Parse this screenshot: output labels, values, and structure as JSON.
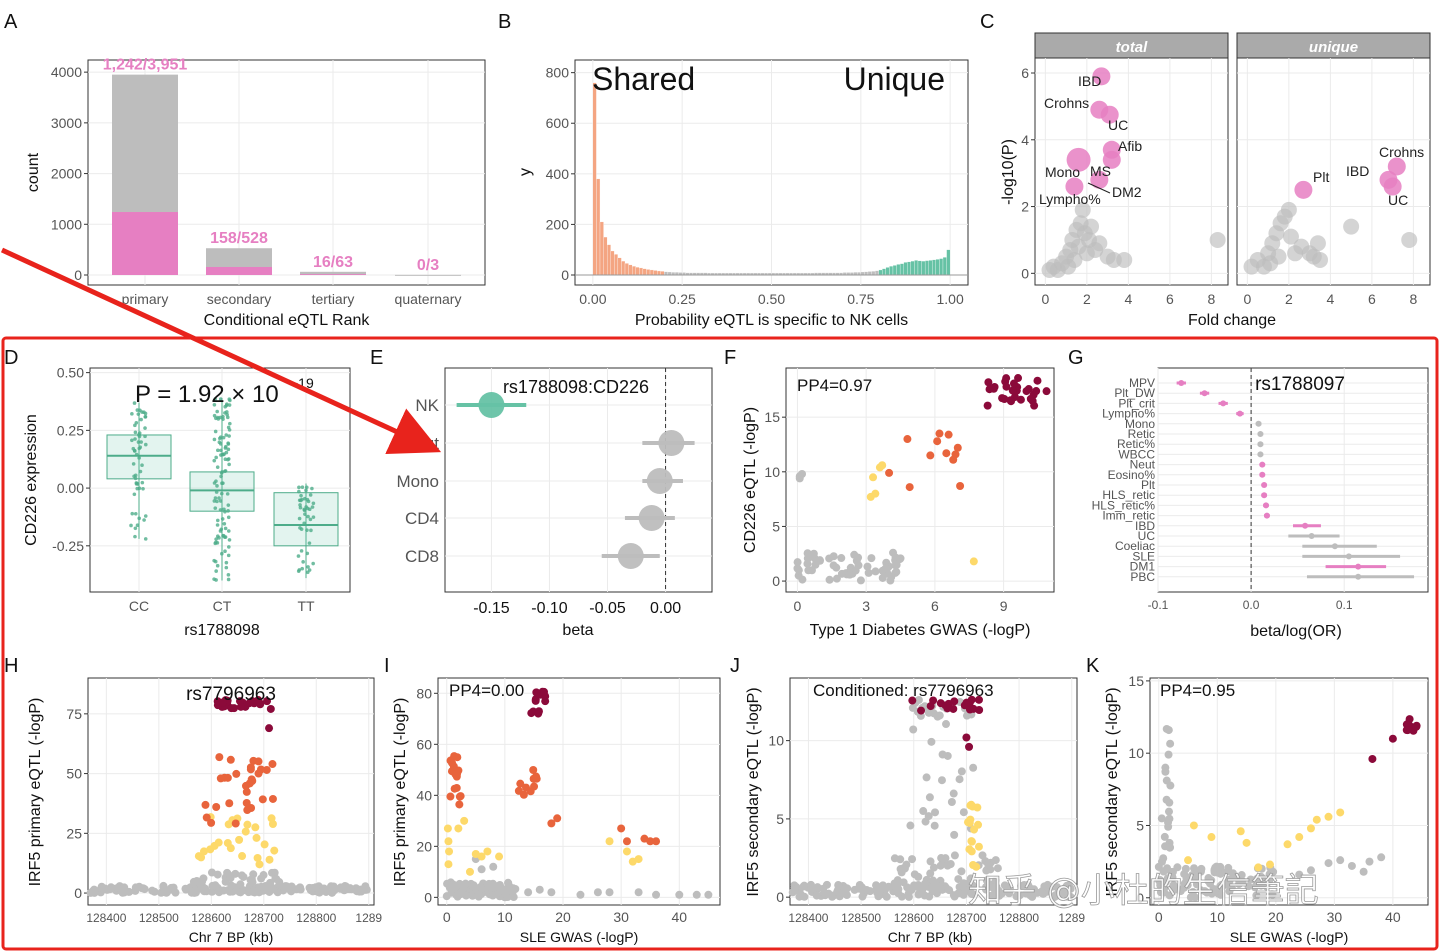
{
  "colors": {
    "grey": "#bdbdbd",
    "pink": "#e67fc2",
    "orange": "#f4a582",
    "teal": "#66c2a5",
    "dark_red": "#8b0a3a",
    "red_orange": "#e8643c",
    "yellow": "#fdd96a",
    "teal_dark": "#4dac8a",
    "arrow": "#e8231c"
  },
  "panel_letters": [
    "A",
    "B",
    "C",
    "D",
    "E",
    "F",
    "G",
    "H",
    "I",
    "J",
    "K"
  ],
  "chart_data": [
    {
      "id": "A",
      "type": "bar",
      "categories": [
        "primary",
        "secondary",
        "tertiary",
        "quaternary"
      ],
      "series": [
        {
          "values": [
            3951,
            528,
            63,
            3
          ]
        },
        {
          "values": [
            1242,
            158,
            16,
            0
          ]
        }
      ],
      "bar_labels": [
        "1,242/3,951",
        "158/528",
        "16/63",
        "0/3"
      ],
      "xlabel": "Conditional eQTL Rank",
      "ylabel": "count",
      "ylim": [
        0,
        4200
      ],
      "yticks": [
        "0",
        "1000",
        "2000",
        "3000",
        "4000"
      ]
    },
    {
      "id": "B",
      "type": "bar",
      "annotations": [
        "Shared",
        "Unique"
      ],
      "xlabel": "Probability eQTL is specific to NK cells",
      "ylabel": "y",
      "xticks": [
        "0.00",
        "0.25",
        "0.50",
        "0.75",
        "1.00"
      ],
      "yticks": [
        "0",
        "200",
        "400",
        "600",
        "800"
      ],
      "ylim": [
        0,
        850
      ],
      "bin_width": 0.01,
      "x_start": 0.0,
      "values": [
        760,
        380,
        210,
        150,
        120,
        95,
        82,
        68,
        55,
        46,
        40,
        35,
        31,
        28,
        25,
        22,
        20,
        18,
        16,
        15,
        13,
        12,
        11,
        11,
        10,
        10,
        9,
        9,
        9,
        9,
        9,
        9,
        8,
        8,
        8,
        8,
        8,
        8,
        8,
        8,
        8,
        8,
        8,
        8,
        8,
        8,
        8,
        8,
        8,
        8,
        8,
        8,
        8,
        8,
        8,
        8,
        8,
        8,
        8,
        8,
        8,
        8,
        9,
        9,
        9,
        9,
        9,
        9,
        9,
        9,
        10,
        10,
        10,
        11,
        11,
        12,
        13,
        14,
        15,
        17,
        20,
        25,
        30,
        35,
        38,
        42,
        45,
        50,
        52,
        55,
        58,
        56,
        55,
        57,
        58,
        60,
        62,
        65,
        70,
        100
      ]
    },
    {
      "id": "C",
      "type": "scatter",
      "facets": [
        "total",
        "unique"
      ],
      "xlabel": "Fold change",
      "ylabel": "-log10(P)",
      "xticks": [
        "0",
        "2",
        "4",
        "6",
        "8"
      ],
      "yticks": [
        "0",
        "2",
        "4",
        "6"
      ],
      "xlim": [
        -0.5,
        8.8
      ],
      "ylim": [
        -0.2,
        6.3
      ],
      "labeled_points": [
        {
          "facet": "total",
          "label": "IBD",
          "x": 2.7,
          "y": 5.9
        },
        {
          "facet": "total",
          "label": "Crohns",
          "x": 2.6,
          "y": 4.9
        },
        {
          "facet": "total",
          "label": "UC",
          "x": 3.1,
          "y": 4.75
        },
        {
          "facet": "total",
          "label": "Afib",
          "x": 3.2,
          "y": 3.7
        },
        {
          "facet": "total",
          "label": "Mono",
          "x": 1.6,
          "y": 3.4
        },
        {
          "facet": "total",
          "label": "MS",
          "x": 3.2,
          "y": 3.4
        },
        {
          "facet": "total",
          "label": "DM2",
          "x": 2.6,
          "y": 2.8
        },
        {
          "facet": "total",
          "label": "Lympho%",
          "x": 1.4,
          "y": 2.6
        },
        {
          "facet": "unique",
          "label": "Crohns",
          "x": 7.2,
          "y": 3.2
        },
        {
          "facet": "unique",
          "label": "IBD",
          "x": 6.8,
          "y": 2.8
        },
        {
          "facet": "unique",
          "label": "UC",
          "x": 7.0,
          "y": 2.6
        },
        {
          "facet": "unique",
          "label": "Plt",
          "x": 2.7,
          "y": 2.5
        }
      ],
      "unlabeled_points": [
        [
          0.2,
          0.1
        ],
        [
          0.4,
          0.2
        ],
        [
          0.6,
          0.1
        ],
        [
          0.8,
          0.3
        ],
        [
          1.0,
          0.5
        ],
        [
          1.1,
          0.2
        ],
        [
          1.2,
          0.7
        ],
        [
          1.3,
          1.0
        ],
        [
          1.4,
          0.4
        ],
        [
          1.5,
          1.3
        ],
        [
          1.6,
          0.8
        ],
        [
          1.7,
          1.5
        ],
        [
          1.8,
          1.9
        ],
        [
          1.9,
          1.2
        ],
        [
          2.0,
          0.6
        ],
        [
          2.1,
          1.0
        ],
        [
          2.2,
          1.4
        ],
        [
          2.4,
          0.7
        ],
        [
          2.6,
          0.9
        ],
        [
          3.0,
          0.5
        ],
        [
          3.3,
          0.4
        ],
        [
          3.8,
          0.4
        ],
        [
          8.3,
          1.0
        ]
      ],
      "unlabeled_points_unique": [
        [
          0.2,
          0.2
        ],
        [
          0.5,
          0.4
        ],
        [
          0.8,
          0.2
        ],
        [
          1.0,
          0.6
        ],
        [
          1.2,
          0.9
        ],
        [
          1.4,
          1.2
        ],
        [
          1.5,
          0.5
        ],
        [
          1.6,
          1.5
        ],
        [
          1.8,
          1.7
        ],
        [
          2.0,
          1.9
        ],
        [
          2.1,
          1.1
        ],
        [
          2.3,
          0.6
        ],
        [
          2.6,
          0.8
        ],
        [
          3.0,
          0.6
        ],
        [
          3.2,
          0.5
        ],
        [
          3.5,
          0.4
        ],
        [
          5.0,
          1.4
        ],
        [
          7.8,
          1.0
        ],
        [
          3.4,
          0.9
        ],
        [
          1.1,
          0.3
        ]
      ]
    },
    {
      "id": "D",
      "type": "box",
      "categories": [
        "CC",
        "CT",
        "TT"
      ],
      "boxes": [
        {
          "q1": 0.04,
          "median": 0.14,
          "q3": 0.23,
          "whisker_low": -0.22,
          "whisker_high": 0.37
        },
        {
          "q1": -0.1,
          "median": -0.01,
          "q3": 0.07,
          "whisker_low": -0.4,
          "whisker_high": 0.39
        },
        {
          "q1": -0.25,
          "median": -0.16,
          "q3": -0.02,
          "whisker_low": -0.39,
          "whisker_high": 0.02
        }
      ],
      "xlabel": "rs1788098",
      "ylabel": "CD226 expression",
      "yticks": [
        "-0.25",
        "0.00",
        "0.25",
        "0.50"
      ],
      "ylim": [
        -0.45,
        0.52
      ],
      "p_label": "P = 1.92 × 10",
      "p_exponent": "−19"
    },
    {
      "id": "E",
      "type": "scatter",
      "title": "rs1788098:CD226",
      "categories": [
        "NK",
        "Neut",
        "Mono",
        "CD4",
        "CD8"
      ],
      "beta": [
        -0.15,
        0.005,
        -0.005,
        -0.012,
        -0.03
      ],
      "ci_low": [
        -0.18,
        -0.02,
        -0.02,
        -0.035,
        -0.055
      ],
      "ci_high": [
        -0.12,
        0.025,
        0.015,
        0.008,
        -0.005
      ],
      "xlabel": "beta",
      "xticks": [
        "-0.15",
        "-0.10",
        "-0.05",
        "0.00"
      ],
      "xlim": [
        -0.19,
        0.04
      ]
    },
    {
      "id": "F",
      "type": "scatter",
      "annotation": "PP4=0.97",
      "xlabel": "Type 1 Diabetes GWAS (-logP)",
      "ylabel": "CD226 eQTL (-logP)",
      "xticks": [
        "0",
        "3",
        "6",
        "9"
      ],
      "yticks": [
        "0",
        "5",
        "10",
        "15"
      ],
      "xlim": [
        -0.5,
        11.2
      ],
      "ylim": [
        -1,
        19.5
      ]
    },
    {
      "id": "G",
      "type": "scatter",
      "title": "rs1788097",
      "categories": [
        "MPV",
        "Plt_DW",
        "Plt_crit",
        "Lympho%",
        "Mono",
        "Retic",
        "Retic%",
        "WBCC",
        "Neut",
        "Eosino%",
        "Plt",
        "HLS_retic",
        "HLS_retic%",
        "Imm_retic",
        "IBD",
        "UC",
        "Coeliac",
        "SLE",
        "DM1",
        "PBC"
      ],
      "beta": [
        -0.075,
        -0.05,
        -0.03,
        -0.012,
        0.008,
        0.01,
        0.01,
        0.01,
        0.012,
        0.012,
        0.014,
        0.014,
        0.016,
        0.017,
        0.058,
        0.065,
        0.09,
        0.105,
        0.115,
        0.115
      ],
      "ci_low": [
        -0.08,
        -0.055,
        -0.035,
        -0.016,
        0.005,
        0.007,
        0.007,
        0.007,
        0.009,
        0.009,
        0.011,
        0.011,
        0.013,
        0.014,
        0.045,
        0.04,
        0.055,
        0.055,
        0.08,
        0.06
      ],
      "ci_high": [
        -0.07,
        -0.045,
        -0.025,
        -0.008,
        0.011,
        0.013,
        0.013,
        0.013,
        0.015,
        0.015,
        0.017,
        0.017,
        0.019,
        0.02,
        0.075,
        0.095,
        0.135,
        0.16,
        0.145,
        0.175
      ],
      "xlabel": "beta/log(OR)",
      "xticks": [
        "-0.1",
        "0.0",
        "0.1"
      ],
      "xlim": [
        -0.1,
        0.19
      ]
    },
    {
      "id": "H",
      "type": "scatter",
      "title": "rs7796963",
      "xlabel": "Chr 7 BP (kb)",
      "ylabel": "IRF5 primary eQTL (-logP)",
      "xticks": [
        "128400",
        "128500",
        "128600",
        "128700",
        "128800",
        "1289"
      ],
      "yticks": [
        "0",
        "25",
        "50",
        "75"
      ],
      "ylim": [
        -5,
        90
      ]
    },
    {
      "id": "I",
      "type": "scatter",
      "annotation": "PP4=0.00",
      "xlabel": "SLE GWAS (-logP)",
      "ylabel": "IRF5 primary eQTL (-logP)",
      "xticks": [
        "0",
        "10",
        "20",
        "30",
        "40"
      ],
      "yticks": [
        "0",
        "20",
        "40",
        "60",
        "80"
      ],
      "xlim": [
        -1.5,
        47
      ],
      "ylim": [
        -3,
        86
      ]
    },
    {
      "id": "J",
      "type": "scatter",
      "annotation": "Conditioned: rs7796963",
      "xlabel": "Chr 7 BP (kb)",
      "ylabel": "IRF5 secondary eQTL (-logP)",
      "xticks": [
        "128400",
        "128500",
        "128600",
        "128700",
        "128800",
        "1289"
      ],
      "yticks": [
        "0",
        "5",
        "10"
      ],
      "ylim": [
        -0.5,
        14
      ]
    },
    {
      "id": "K",
      "type": "scatter",
      "annotation": "PP4=0.95",
      "xlabel": "SLE GWAS (-logP)",
      "ylabel": "IRF5 secondary eQTL (-logP)",
      "xticks": [
        "0",
        "10",
        "20",
        "30",
        "40"
      ],
      "yticks": [
        "0",
        "5",
        "10",
        "15"
      ],
      "xlim": [
        -1.5,
        46
      ],
      "ylim": [
        -0.5,
        15.2
      ]
    }
  ],
  "watermark": "知乎 @小杜的生信筆記"
}
